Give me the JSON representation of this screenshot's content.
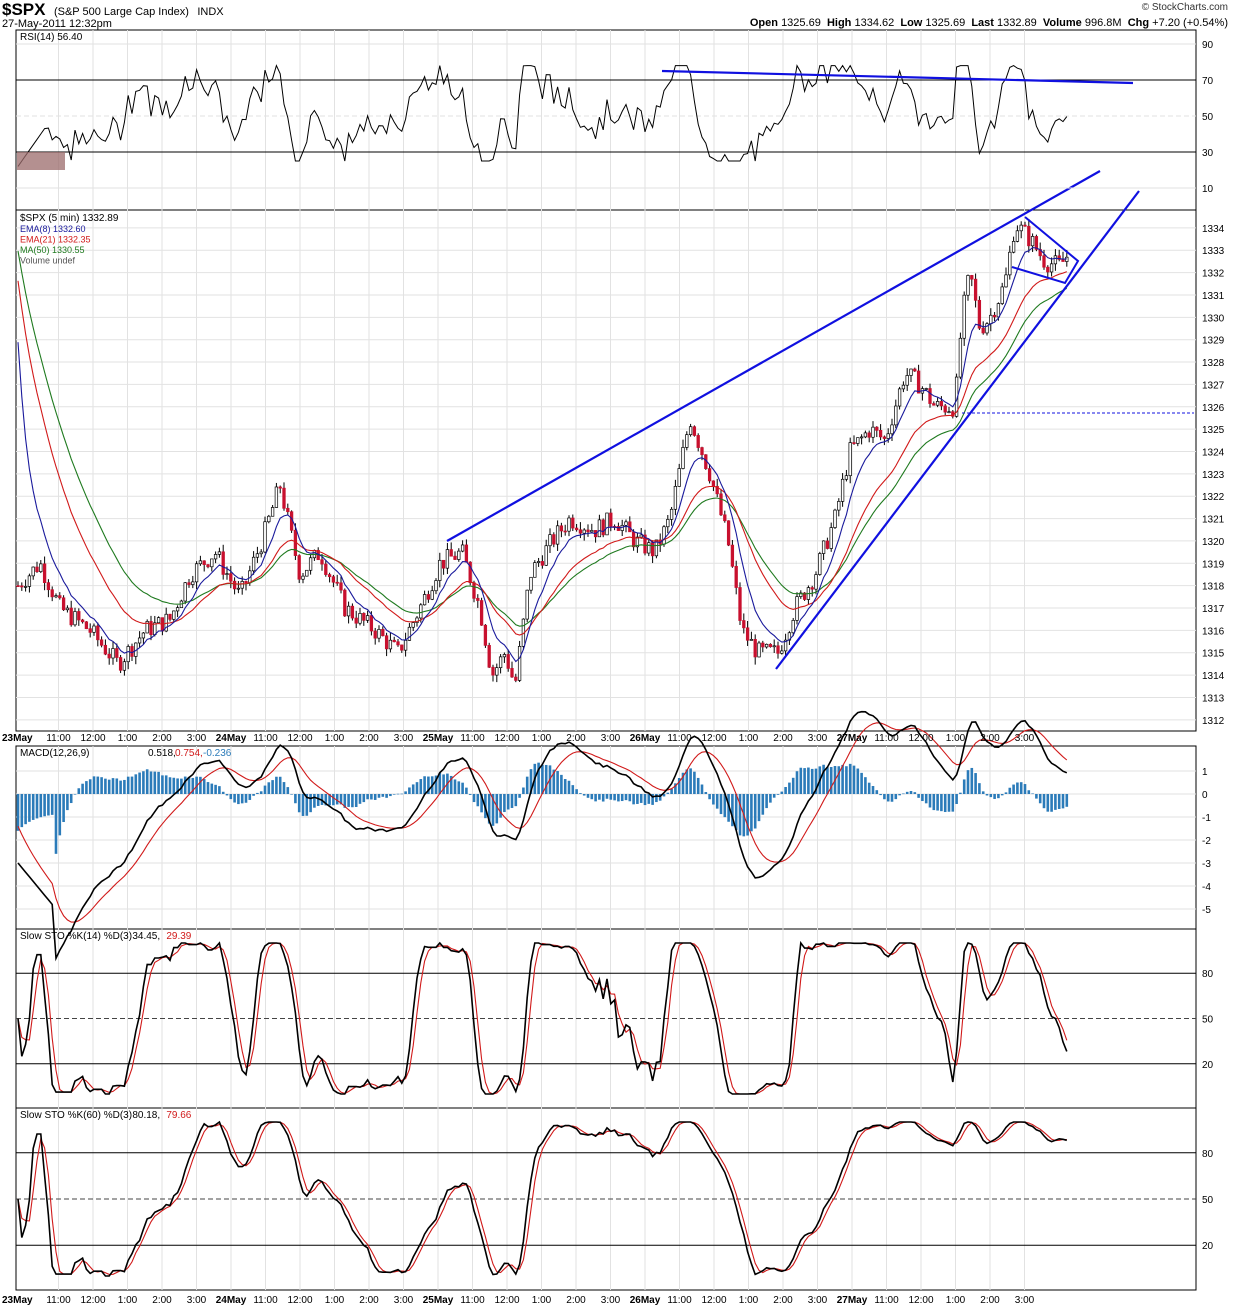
{
  "header": {
    "symbol": "$SPX",
    "name": "(S&P 500 Large Cap Index)",
    "exchange": "INDX",
    "date_time": "27-May-2011 12:32pm",
    "brand": "© StockCharts.com",
    "open_label": "Open",
    "open": "1325.69",
    "high_label": "High",
    "high": "1334.62",
    "low_label": "Low",
    "low": "1325.69",
    "last_label": "Last",
    "last": "1332.89",
    "volume_label": "Volume",
    "volume": "996.8M",
    "chg_label": "Chg",
    "chg": "+7.20 (+0.54%)"
  },
  "panels": {
    "rsi": {
      "label": "RSI(14) 56.40",
      "ticks": [
        "90",
        "70",
        "50",
        "30",
        "10"
      ]
    },
    "price": {
      "label": "$SPX (5 min) 1332.89",
      "legend": [
        {
          "text": "EMA(8) 1332.60",
          "color": "#1a1a9c"
        },
        {
          "text": "EMA(21) 1332.35",
          "color": "#d11a1a"
        },
        {
          "text": "MA(50) 1330.55",
          "color": "#1f7a1f"
        },
        {
          "text": "Volume undef",
          "color": "#555555"
        }
      ],
      "ticks": [
        "1334",
        "1333",
        "1332",
        "1331",
        "1330",
        "1329",
        "1328",
        "1327",
        "1326",
        "1325",
        "1324",
        "1323",
        "1322",
        "1321",
        "1320",
        "1319",
        "1318",
        "1317",
        "1316",
        "1315",
        "1314",
        "1313",
        "1312"
      ]
    },
    "macd": {
      "label": "MACD(12,26,9)",
      "v1": "0.518,",
      "v2": "0.754,",
      "v3": "-0.236",
      "ticks": [
        "1",
        "0",
        "-1",
        "-2",
        "-3",
        "-4",
        "-5"
      ]
    },
    "sto14": {
      "label": "Slow STO %K(14) %D(3)",
      "v1": "34.45,",
      "v2": "29.39",
      "ticks": [
        "80",
        "50",
        "20"
      ]
    },
    "sto60": {
      "label": "Slow STO %K(60) %D(3)",
      "v1": "80.18,",
      "v2": "79.66",
      "ticks": [
        "80",
        "50",
        "20"
      ]
    }
  },
  "time_axis": [
    "23May",
    "11:00",
    "12:00",
    "1:00",
    "2:00",
    "3:00",
    "24May",
    "11:00",
    "12:00",
    "1:00",
    "2:00",
    "3:00",
    "25May",
    "11:00",
    "12:00",
    "1:00",
    "2:00",
    "3:00",
    "26May",
    "11:00",
    "12:00",
    "1:00",
    "2:00",
    "3:00",
    "27May",
    "11:00",
    "12:00",
    "1:00",
    "2:00",
    "3:00"
  ],
  "chart_data": {
    "type": "line",
    "series": [
      {
        "name": "$SPX",
        "x": [
          "23May",
          "24May",
          "25May",
          "26May",
          "27May"
        ],
        "values": [
          1316,
          1318,
          1318,
          1316,
          1332.89
        ]
      },
      {
        "name": "EMA(8)",
        "values": [
          1332.6
        ]
      },
      {
        "name": "EMA(21)",
        "values": [
          1332.35
        ]
      },
      {
        "name": "MA(50)",
        "values": [
          1330.55
        ]
      }
    ],
    "ylim": [
      1311.5,
      1334.8
    ],
    "xlabel": "",
    "ylabel": ""
  }
}
